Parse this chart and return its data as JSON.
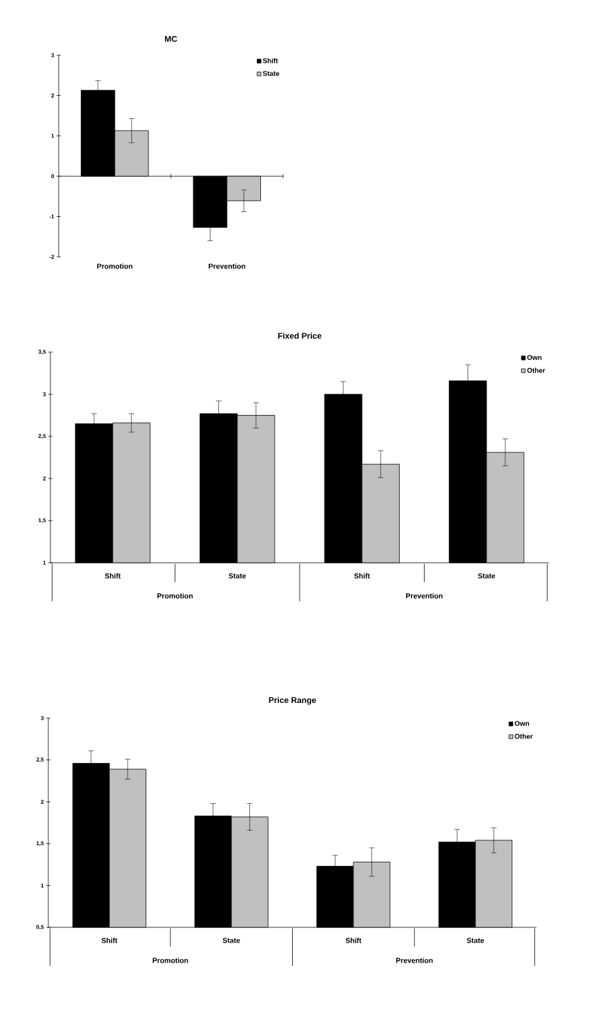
{
  "chart_data": [
    {
      "type": "bar",
      "title": "MC",
      "categories": [
        "Promotion",
        "Prevention"
      ],
      "ylim": [
        -2,
        3
      ],
      "yticks": [
        3,
        2,
        1,
        0,
        -1,
        -2
      ],
      "legend": "top right",
      "series": [
        {
          "name": "Shift",
          "color": "#000000",
          "values": [
            2.13,
            -1.27
          ],
          "errors": [
            0.24,
            0.33
          ]
        },
        {
          "name": "State",
          "color": "#c0c0c0",
          "values": [
            1.13,
            -0.61
          ],
          "errors": [
            0.3,
            0.27
          ]
        }
      ]
    },
    {
      "type": "bar",
      "title": "Fixed Price",
      "categories": [
        "Shift",
        "State",
        "Shift",
        "State"
      ],
      "annotations": [
        "Promotion",
        "Prevention"
      ],
      "ylim": [
        1,
        3.5
      ],
      "yticks": [
        {
          "value": 3.5,
          "label": "3,5"
        },
        3,
        {
          "value": 2.5,
          "label": "2,5"
        },
        2,
        {
          "value": 1.5,
          "label": "1,5"
        },
        1
      ],
      "legend": "top right",
      "series": [
        {
          "name": "Own",
          "color": "#000000",
          "values": [
            2.65,
            2.77,
            3.0,
            3.16
          ],
          "errors": [
            0.12,
            0.15,
            0.15,
            0.19
          ]
        },
        {
          "name": "Other",
          "color": "#c0c0c0",
          "values": [
            2.66,
            2.75,
            2.17,
            2.31
          ],
          "errors": [
            0.11,
            0.15,
            0.16,
            0.16
          ]
        }
      ]
    },
    {
      "type": "bar",
      "title": "Price Range",
      "categories": [
        "Shift",
        "State",
        "Shift",
        "State"
      ],
      "annotations": [
        "Promotion",
        "Prevention"
      ],
      "ylim": [
        0.5,
        3
      ],
      "yticks": [
        3,
        {
          "value": 2.5,
          "label": "2,5"
        },
        2,
        {
          "value": 1.5,
          "label": "1,5"
        },
        1,
        {
          "value": 0.5,
          "label": "0,5"
        }
      ],
      "legend": "top right",
      "series": [
        {
          "name": "Own",
          "color": "#000000",
          "values": [
            2.46,
            1.83,
            1.23,
            1.52
          ],
          "errors": [
            0.15,
            0.15,
            0.13,
            0.15
          ]
        },
        {
          "name": "Other",
          "color": "#c0c0c0",
          "values": [
            2.39,
            1.82,
            1.28,
            1.54
          ],
          "errors": [
            0.12,
            0.16,
            0.17,
            0.15
          ]
        }
      ]
    }
  ]
}
